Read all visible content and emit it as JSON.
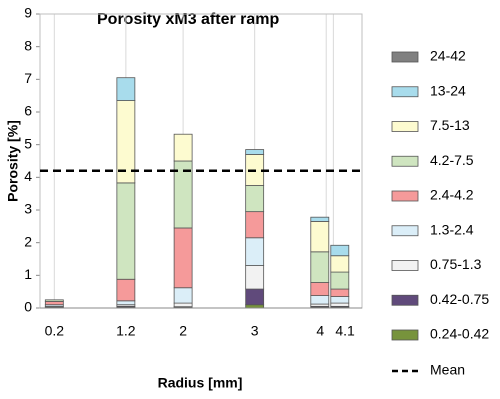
{
  "chart_data": {
    "type": "stacked_bar",
    "title": "Porosity xM3 after ramp",
    "x_label": "Radius [mm]",
    "y_label": "Porosity [%]",
    "x": [
      0.2,
      1.2,
      2,
      3,
      4,
      4.1
    ],
    "xlim": [
      0,
      4.5
    ],
    "xticks": [
      0.2,
      1.2,
      2,
      3,
      4,
      4.1
    ],
    "ylim": [
      0,
      9
    ],
    "yticks": [
      0,
      1,
      2,
      3,
      4,
      5,
      6,
      7,
      8,
      9
    ],
    "grid": true,
    "legend": "right",
    "series": [
      {
        "name": "0.24-0.42",
        "color": "#77933c",
        "values": [
          0.02,
          0.02,
          0.02,
          0.1,
          0.02,
          0.02
        ]
      },
      {
        "name": "0.42-0.75",
        "color": "#604a7b",
        "values": [
          0,
          0.03,
          0.02,
          0.48,
          0.03,
          0.03
        ]
      },
      {
        "name": "0.75-1.3",
        "color": "#f2f2f2",
        "values": [
          0.03,
          0.05,
          0.11,
          0.72,
          0.07,
          0.1
        ]
      },
      {
        "name": "1.3-2.4",
        "color": "#dbeef8",
        "values": [
          0.05,
          0.12,
          0.47,
          0.85,
          0.26,
          0.2
        ]
      },
      {
        "name": "2.4-4.2",
        "color": "#f59a9a",
        "values": [
          0.1,
          0.66,
          1.83,
          0.8,
          0.4,
          0.23
        ]
      },
      {
        "name": "4.2-7.5",
        "color": "#cfe5c0",
        "values": [
          0.05,
          2.95,
          2.05,
          0.8,
          0.94,
          0.52
        ]
      },
      {
        "name": "7.5-13",
        "color": "#fdfbd0",
        "values": [
          0,
          2.52,
          0.82,
          0.95,
          0.93,
          0.5
        ]
      },
      {
        "name": "13-24",
        "color": "#a8dcec",
        "values": [
          0,
          0.7,
          0,
          0.15,
          0.13,
          0.32
        ]
      },
      {
        "name": "24-42",
        "color": "#808080",
        "values": [
          0,
          0,
          0,
          0,
          0,
          0
        ]
      }
    ],
    "mean": {
      "name": "Mean",
      "value": 4.2,
      "color": "#000000"
    }
  }
}
